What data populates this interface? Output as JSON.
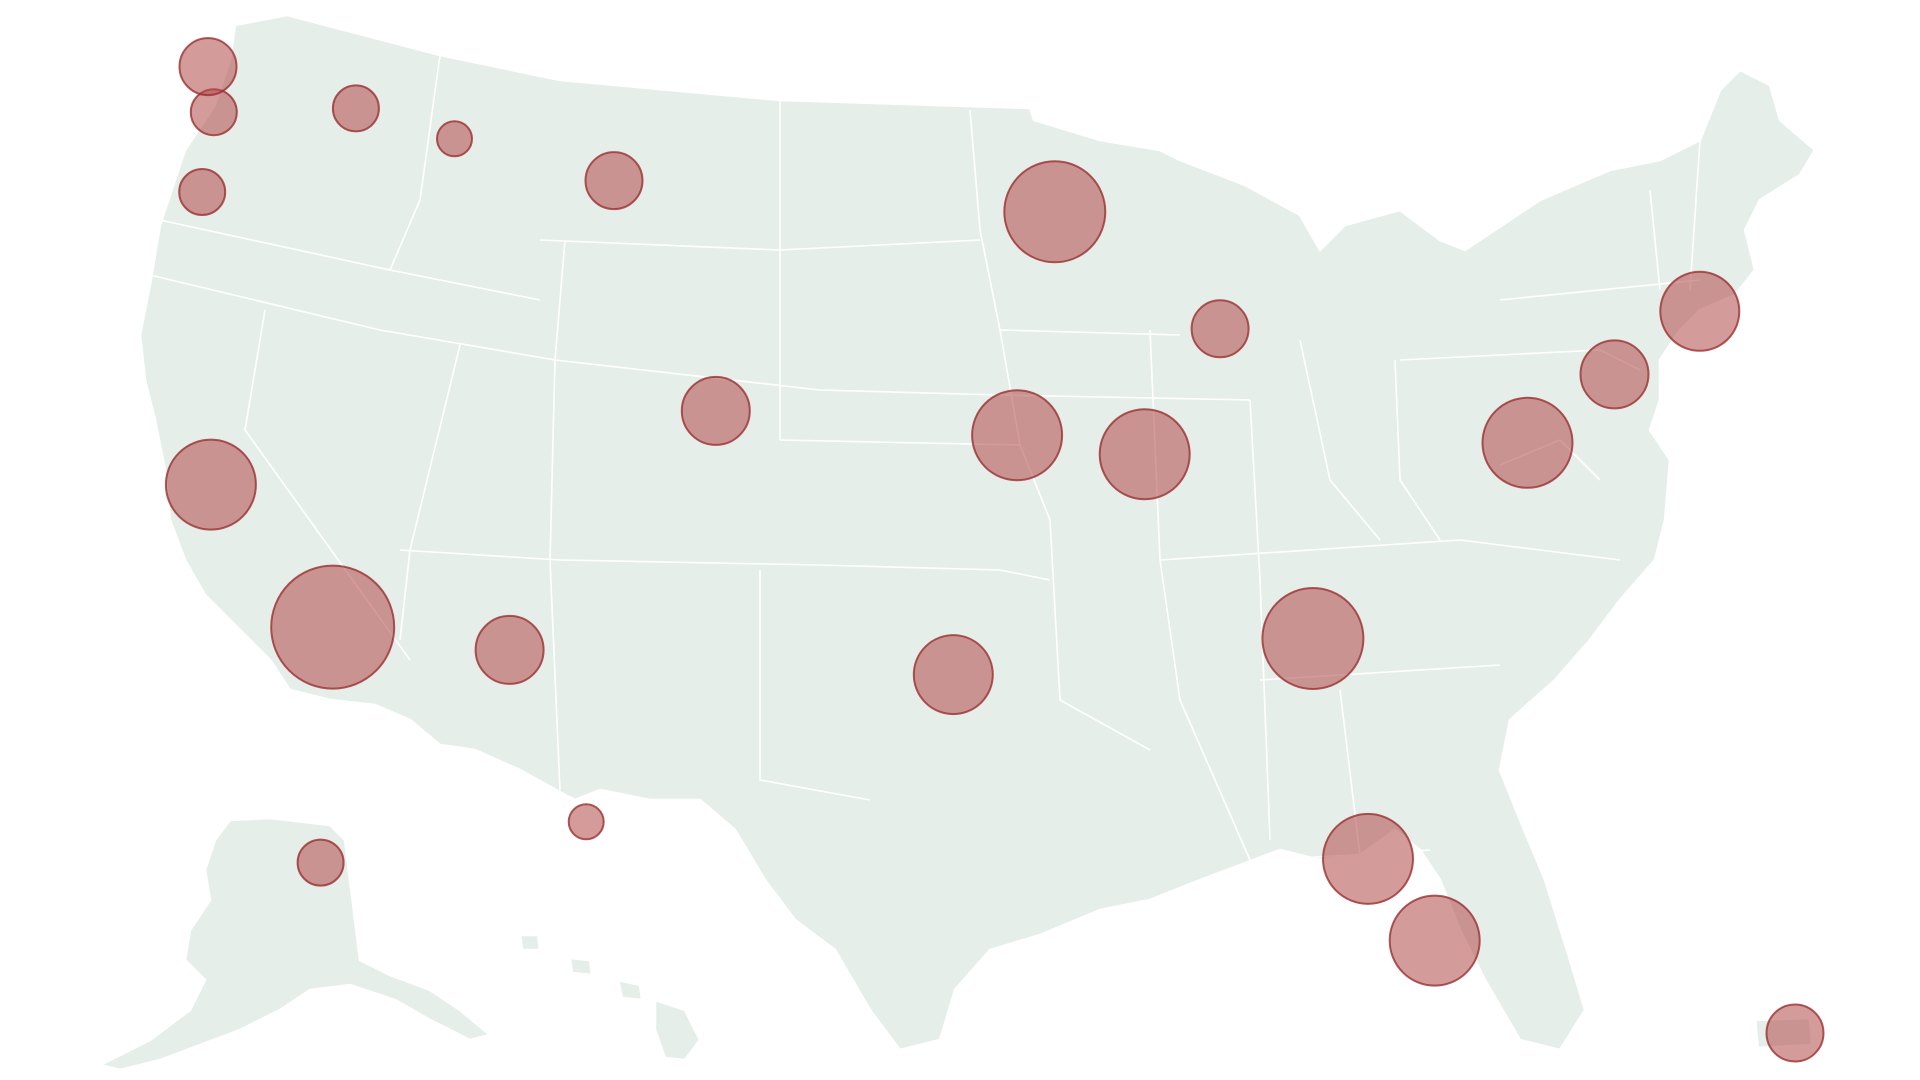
{
  "map": {
    "region": "United States",
    "style": {
      "land_color": "#e6eeea",
      "border_color": "#ffffff",
      "background_color": "#ffffff",
      "bubble_fill": "#b04848",
      "bubble_stroke": "#9a2f30",
      "bubble_opacity": 0.55
    },
    "bubbles": [
      {
        "id": "seattle-area",
        "lon": -122.3,
        "lat": 47.6,
        "size": 2
      },
      {
        "id": "bellingham",
        "lon": -122.5,
        "lat": 48.8,
        "size": 3
      },
      {
        "id": "spokane",
        "lon": -117.4,
        "lat": 47.7,
        "size": 2
      },
      {
        "id": "portland-or",
        "lon": -122.7,
        "lat": 45.5,
        "size": 2
      },
      {
        "id": "missoula",
        "lon": -114.0,
        "lat": 46.9,
        "size": 1
      },
      {
        "id": "billings",
        "lon": -108.5,
        "lat": 45.8,
        "size": 3
      },
      {
        "id": "minneapolis",
        "lon": -93.3,
        "lat": 44.98,
        "size": 7
      },
      {
        "id": "chicago",
        "lon": -87.6,
        "lat": 41.9,
        "size": 3
      },
      {
        "id": "dallas",
        "lon": -96.8,
        "lat": 32.8,
        "size": 5
      },
      {
        "id": "los-angeles",
        "lon": -118.2,
        "lat": 34.05,
        "size": 9
      },
      {
        "id": "san-francisco",
        "lon": -122.4,
        "lat": 37.8,
        "size": 6
      },
      {
        "id": "kansas-city",
        "lon": -94.6,
        "lat": 39.1,
        "size": 6
      },
      {
        "id": "st-louis",
        "lon": -90.2,
        "lat": 38.6,
        "size": 6
      },
      {
        "id": "atlanta",
        "lon": -84.4,
        "lat": 33.75,
        "size": 7
      },
      {
        "id": "miami",
        "lon": -80.2,
        "lat": 25.8,
        "size": 6
      },
      {
        "id": "tampa",
        "lon": -82.5,
        "lat": 27.95,
        "size": 6
      },
      {
        "id": "new-york",
        "lon": -74.0,
        "lat": 40.7,
        "size": 4
      },
      {
        "id": "boston",
        "lon": -71.06,
        "lat": 42.36,
        "size": 5
      },
      {
        "id": "washington-dc",
        "lon": -77.0,
        "lat": 38.9,
        "size": 6
      },
      {
        "id": "phoenix",
        "lon": -112.1,
        "lat": 33.45,
        "size": 4
      },
      {
        "id": "denver",
        "lon": -104.99,
        "lat": 39.74,
        "size": 4
      },
      {
        "id": "anchorage",
        "lon": -149.9,
        "lat": 61.2,
        "size": 2
      },
      {
        "id": "honolulu",
        "lon": -157.9,
        "lat": 21.3,
        "size": 1
      },
      {
        "id": "san-juan",
        "lon": -66.1,
        "lat": 18.45,
        "size": 3
      }
    ]
  }
}
